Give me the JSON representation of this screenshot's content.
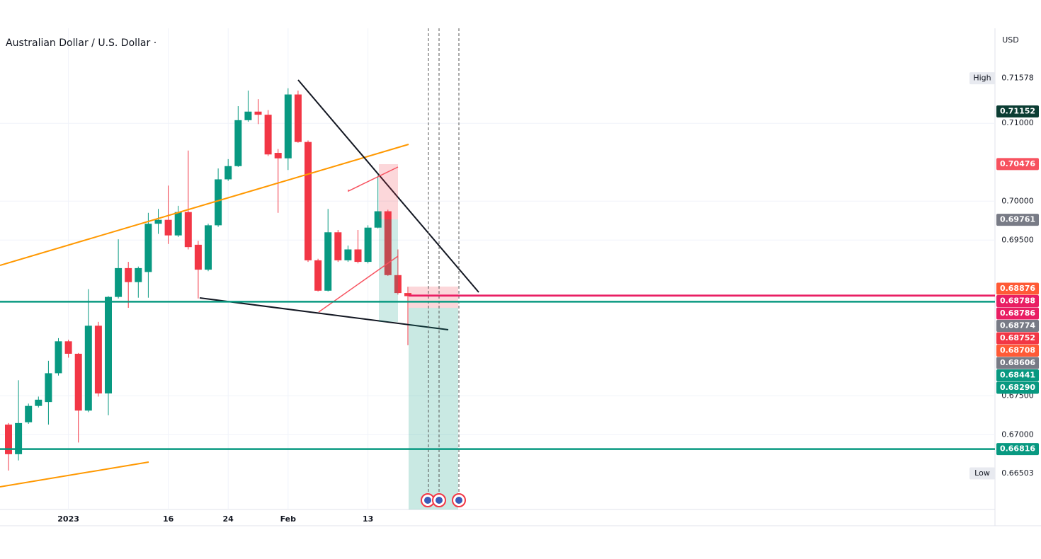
{
  "chart_data": {
    "type": "candlestick",
    "title": "Australian Dollar / U.S. Dollar ·",
    "currency": "USD",
    "categories": [
      null,
      null,
      null,
      null,
      null,
      null,
      "2023",
      null,
      null,
      null,
      null,
      null,
      null,
      null,
      null,
      null,
      "16",
      null,
      null,
      null,
      null,
      null,
      "24",
      null,
      null,
      null,
      null,
      null,
      "Feb",
      null,
      null,
      null,
      null,
      null,
      null,
      null,
      "13",
      null,
      null,
      null,
      null
    ],
    "open": [
      0.6713,
      0.6675,
      0.6716,
      0.6737,
      0.6742,
      0.6779,
      0.682,
      0.6804,
      0.6731,
      0.684,
      0.6753,
      0.6877,
      0.6914,
      0.6896,
      0.6909,
      0.6971,
      0.6976,
      0.6956,
      0.6986,
      0.6944,
      0.6912,
      0.6969,
      0.7028,
      0.7045,
      0.7104,
      0.7115,
      0.7111,
      0.7062,
      0.7055,
      0.7137,
      0.7076,
      0.6924,
      0.6885,
      0.696,
      0.6924,
      0.6938,
      0.6922,
      0.6966,
      0.6987,
      0.6905,
      0.6882
    ],
    "high": [
      0.6715,
      0.677,
      0.674,
      0.6749,
      0.6795,
      0.6824,
      0.6822,
      0.6805,
      0.6887,
      0.6845,
      0.6878,
      0.6951,
      0.6922,
      0.6916,
      0.6985,
      0.699,
      0.702,
      0.6994,
      0.7065,
      0.6949,
      0.6971,
      0.7042,
      0.7054,
      0.7122,
      0.7142,
      0.7131,
      0.7117,
      0.7067,
      0.7145,
      0.7142,
      0.7078,
      0.6926,
      0.699,
      0.6963,
      0.6943,
      0.6963,
      0.6969,
      0.7033,
      0.6989,
      0.6938,
      0.689
    ],
    "low": [
      0.6654,
      0.6667,
      0.6714,
      0.6735,
      0.6713,
      0.6776,
      0.6799,
      0.669,
      0.6729,
      0.6749,
      0.6725,
      0.6875,
      0.6863,
      0.6876,
      0.6876,
      0.6958,
      0.6945,
      0.6954,
      0.6938,
      0.6875,
      0.691,
      0.6967,
      0.7026,
      0.7044,
      0.7102,
      0.7099,
      0.7058,
      0.6985,
      0.704,
      0.7075,
      0.6922,
      0.6884,
      0.6884,
      0.6922,
      0.6922,
      0.692,
      0.692,
      0.6965,
      0.6904,
      0.688,
      0.6815
    ],
    "close": [
      0.6675,
      0.6715,
      0.6737,
      0.6745,
      0.6779,
      0.682,
      0.6804,
      0.6731,
      0.684,
      0.6753,
      0.6877,
      0.6914,
      0.6896,
      0.6914,
      0.6971,
      0.6976,
      0.6956,
      0.6986,
      0.6941,
      0.6912,
      0.6969,
      0.7028,
      0.7045,
      0.7104,
      0.7115,
      0.7111,
      0.706,
      0.7055,
      0.7137,
      0.7076,
      0.6924,
      0.6885,
      0.696,
      0.6924,
      0.6938,
      0.6922,
      0.6966,
      0.6987,
      0.6905,
      0.6882,
      0.6878
    ],
    "up_color": "#089981",
    "down_color": "#f23645",
    "ylim": [
      0.6604,
      0.7222
    ],
    "yticks": [
      {
        "value": 0.71,
        "label": "0.71000"
      },
      {
        "value": 0.7,
        "label": "0.70000"
      },
      {
        "value": 0.695,
        "label": "0.69500"
      },
      {
        "value": 0.675,
        "label": "0.67500"
      },
      {
        "value": 0.67,
        "label": "0.67000"
      }
    ],
    "horizontal_lines": [
      {
        "value": 0.68788,
        "color": "#e91e63"
      },
      {
        "value": 0.68786,
        "color": "#e91e63"
      },
      {
        "value": 0.68708,
        "color": "#089981"
      },
      {
        "value": 0.66816,
        "color": "#089981"
      }
    ],
    "price_labels": [
      {
        "value": 0.71578,
        "label": "0.71578",
        "tag": "High",
        "color": "#ffffff",
        "text_color": "#131722"
      },
      {
        "value": 0.71152,
        "label": "0.71152",
        "color": "#0b3d33",
        "text_color": "#ffffff"
      },
      {
        "value": 0.70476,
        "label": "0.70476",
        "color": "#f7525f",
        "text_color": "#ffffff"
      },
      {
        "value": 0.69761,
        "label": "0.69761",
        "color": "#787b86",
        "text_color": "#ffffff"
      },
      {
        "value": 0.68876,
        "label": "0.68876",
        "color": "#ff5a36",
        "text_color": "#ffffff"
      },
      {
        "value": 0.68788,
        "label": "0.68788",
        "color": "#e91e63",
        "text_color": "#ffffff"
      },
      {
        "value": 0.68786,
        "label": "0.68786",
        "color": "#e91e63",
        "text_color": "#ffffff"
      },
      {
        "value": 0.68774,
        "label": "0.68774",
        "color": "#787b86",
        "text_color": "#ffffff"
      },
      {
        "value": 0.68752,
        "label": "0.68752",
        "color": "#f23645",
        "text_color": "#ffffff"
      },
      {
        "value": 0.68708,
        "label": "0.68708",
        "color": "#ff5a36",
        "text_color": "#ffffff"
      },
      {
        "value": 0.68606,
        "label": "0.68606",
        "color": "#787b86",
        "text_color": "#ffffff"
      },
      {
        "value": 0.68441,
        "label": "0.68441",
        "color": "#089981",
        "text_color": "#ffffff"
      },
      {
        "value": 0.6829,
        "label": "0.68290",
        "color": "#089981",
        "text_color": "#ffffff"
      },
      {
        "value": 0.66816,
        "label": "0.66816",
        "color": "#089981",
        "text_color": "#ffffff"
      },
      {
        "value": 0.66503,
        "label": "0.66503",
        "tag": "Low",
        "color": "#ffffff",
        "text_color": "#131722"
      }
    ]
  }
}
